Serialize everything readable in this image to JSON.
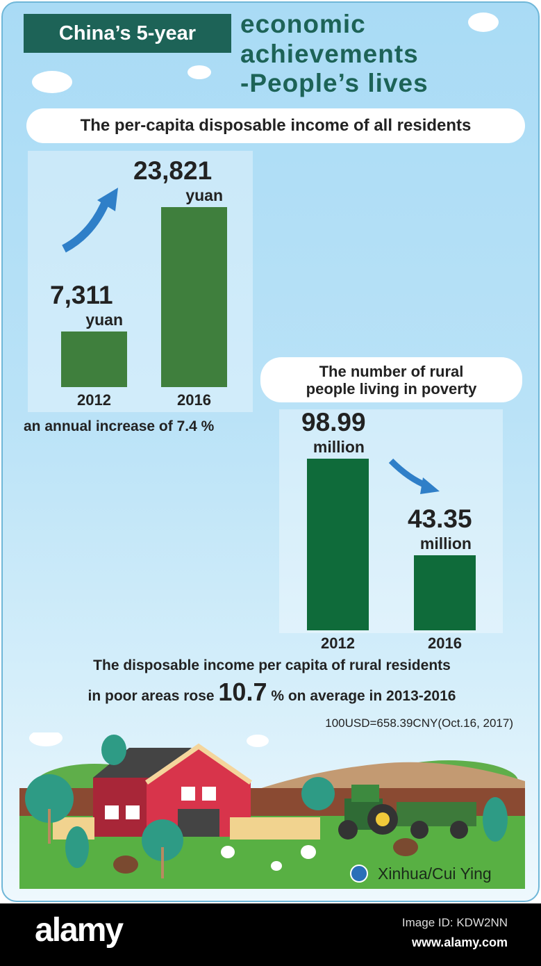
{
  "header": {
    "title_box": "China’s 5-year",
    "title_line1": "economic",
    "title_line2": "achievements",
    "title_line3": "-People’s lives"
  },
  "chart_data": [
    {
      "type": "bar",
      "title": "The per-capita disposable income of all residents",
      "categories": [
        "2012",
        "2016"
      ],
      "values": [
        7311,
        23821
      ],
      "value_labels": [
        "7,311",
        "23,821"
      ],
      "unit": "yuan",
      "ylim": [
        0,
        26000
      ],
      "color": "#3f7f3d",
      "note": "an annual increase of 7.4 %"
    },
    {
      "type": "bar",
      "title": "The number of rural people living in poverty",
      "categories": [
        "2012",
        "2016"
      ],
      "values": [
        98.99,
        43.35
      ],
      "value_labels": [
        "98.99",
        "43.35"
      ],
      "unit": "million",
      "ylim": [
        0,
        100
      ],
      "color": "#0f6b3a"
    }
  ],
  "poverty_title_l1": "The number of rural",
  "poverty_title_l2": "people living in poverty",
  "rural": {
    "line1": "The disposable income per capita of rural residents",
    "line2_pre": "in poor areas rose ",
    "line2_num": "10.7",
    "line2_post": " % on average in 2013-2016"
  },
  "exchange": "100USD=658.39CNY(Oct.16, 2017)",
  "credit": "Xinhua/Cui Ying",
  "footer": {
    "logo": "alamy",
    "image_id": "Image ID: KDW2NN",
    "url": "www.alamy.com"
  }
}
